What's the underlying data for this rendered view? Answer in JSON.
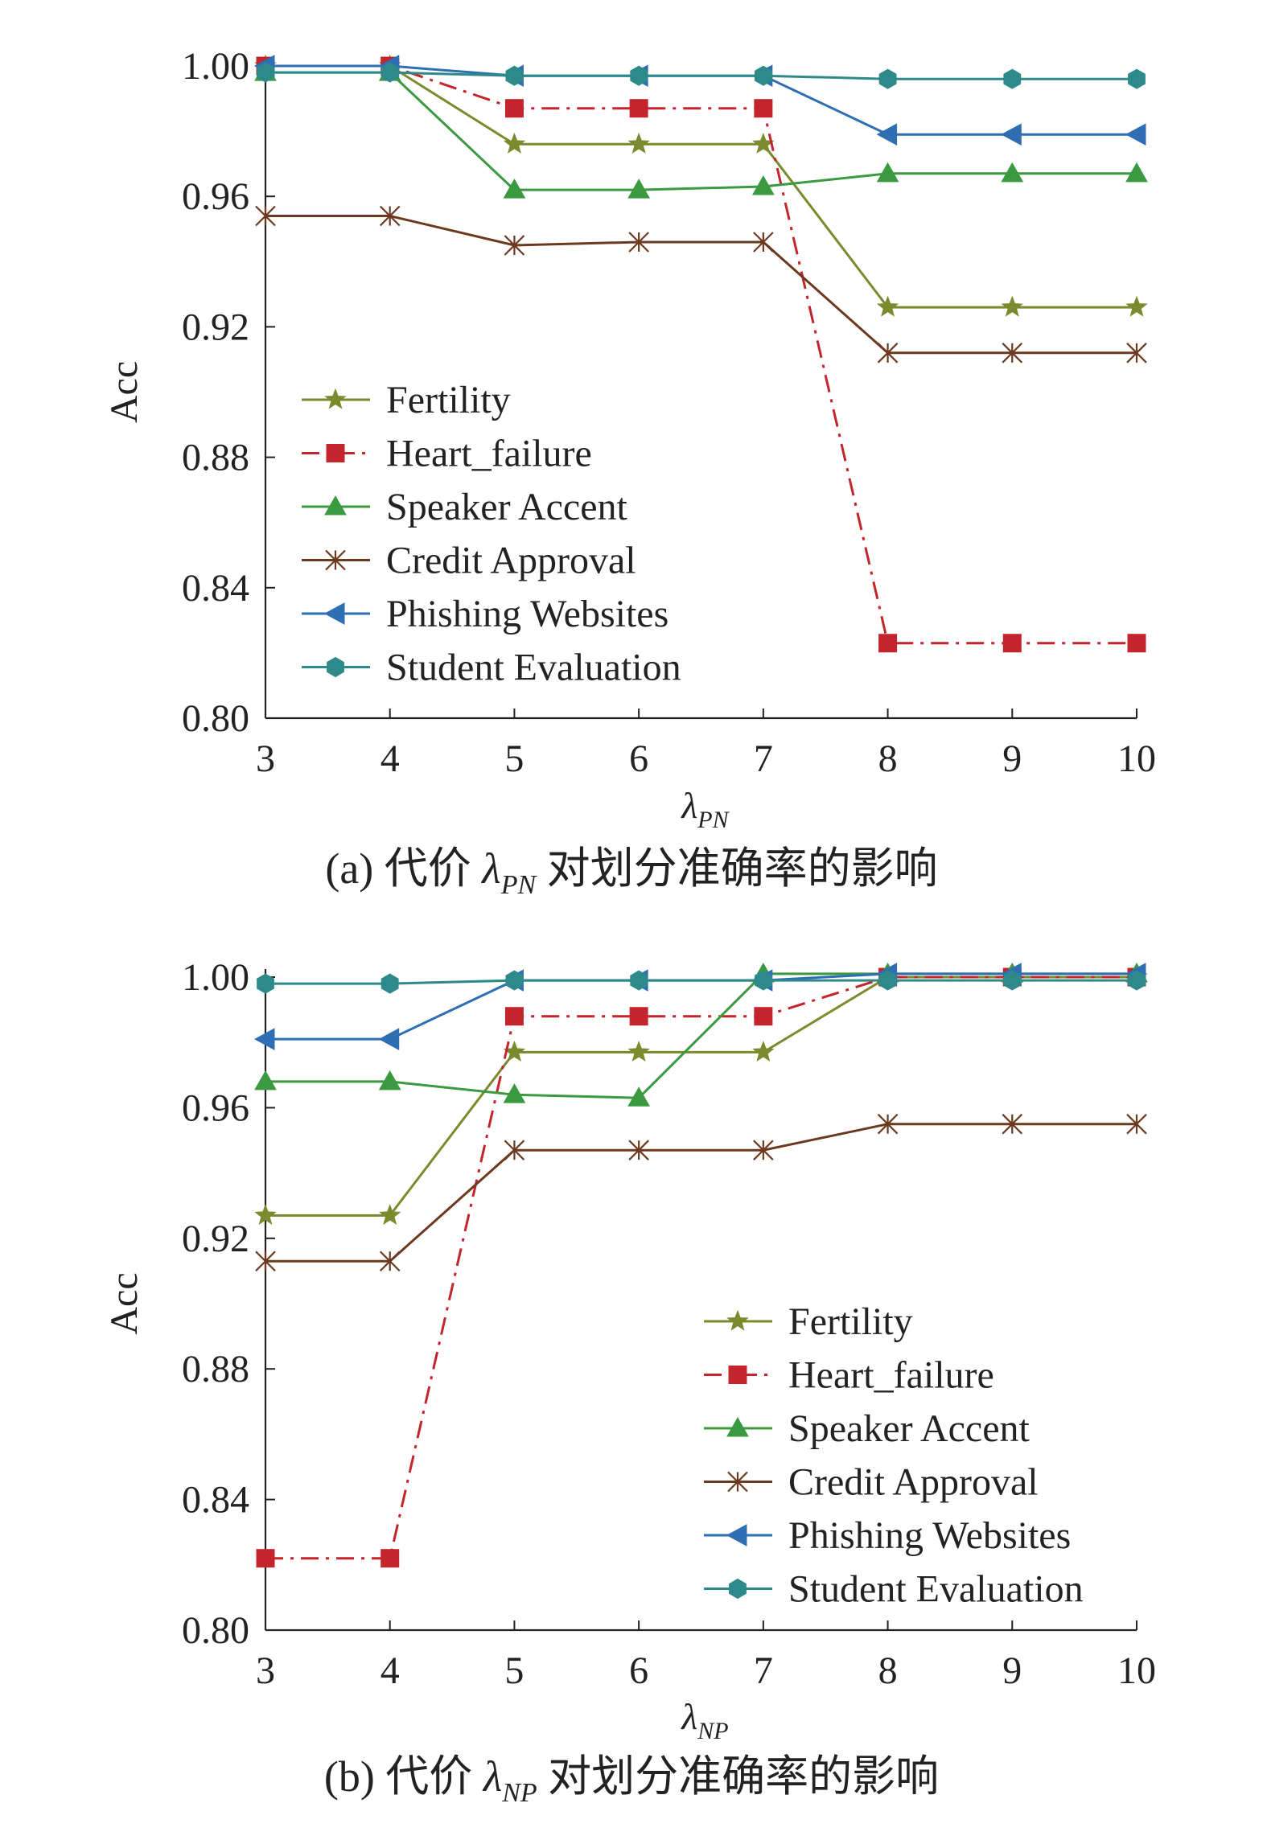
{
  "chart_data": [
    {
      "type": "line",
      "title": "",
      "caption": {
        "prefix": "(a) 代价",
        "symbol": "λ",
        "subscript": "PN",
        "suffix": "对划分准确率的影响"
      },
      "xlabel": {
        "symbol": "λ",
        "subscript": "PN"
      },
      "ylabel": "Acc",
      "x": [
        3,
        4,
        5,
        6,
        7,
        8,
        9,
        10
      ],
      "xticks": [
        "3",
        "4",
        "5",
        "6",
        "7",
        "8",
        "9",
        "10"
      ],
      "yticks": [
        "0.80",
        "0.84",
        "0.88",
        "0.92",
        "0.96",
        "1.00"
      ],
      "xlim": [
        3,
        10
      ],
      "ylim": [
        0.8,
        1.0
      ],
      "grid": false,
      "legend_position": "left-center",
      "series": [
        {
          "name": "Fertility",
          "color": "#7a8a2c",
          "marker": "star",
          "dash": "solid",
          "values": [
            1.0,
            1.0,
            0.976,
            0.976,
            0.976,
            0.926,
            0.926,
            0.926
          ]
        },
        {
          "name": "Heart_failure",
          "color": "#c4242c",
          "marker": "square",
          "dash": "dashdot",
          "values": [
            1.0,
            1.0,
            0.987,
            0.987,
            0.987,
            0.823,
            0.823,
            0.823
          ]
        },
        {
          "name": "Speaker Accent",
          "color": "#3b9a40",
          "marker": "triangle-up",
          "dash": "solid",
          "values": [
            0.998,
            0.998,
            0.962,
            0.962,
            0.963,
            0.967,
            0.967,
            0.967
          ]
        },
        {
          "name": "Credit Approval",
          "color": "#6b3a1e",
          "marker": "asterisk",
          "dash": "solid",
          "values": [
            0.954,
            0.954,
            0.945,
            0.946,
            0.946,
            0.912,
            0.912,
            0.912
          ]
        },
        {
          "name": "Phishing Websites",
          "color": "#2e6fb3",
          "marker": "triangle-left",
          "dash": "solid",
          "values": [
            1.0,
            1.0,
            0.997,
            0.997,
            0.997,
            0.979,
            0.979,
            0.979
          ]
        },
        {
          "name": "Student Evaluation",
          "color": "#2e8a8a",
          "marker": "hexagon",
          "dash": "solid",
          "values": [
            0.998,
            0.998,
            0.997,
            0.997,
            0.997,
            0.996,
            0.996,
            0.996
          ]
        }
      ]
    },
    {
      "type": "line",
      "title": "",
      "caption": {
        "prefix": "(b) 代价",
        "symbol": "λ",
        "subscript": "NP",
        "suffix": "对划分准确率的影响"
      },
      "xlabel": {
        "symbol": "λ",
        "subscript": "NP"
      },
      "ylabel": "Acc",
      "x": [
        3,
        4,
        5,
        6,
        7,
        8,
        9,
        10
      ],
      "xticks": [
        "3",
        "4",
        "5",
        "6",
        "7",
        "8",
        "9",
        "10"
      ],
      "yticks": [
        "0.80",
        "0.84",
        "0.88",
        "0.92",
        "0.96",
        "1.00"
      ],
      "xlim": [
        3,
        10
      ],
      "ylim": [
        0.8,
        1.0
      ],
      "grid": false,
      "legend_position": "bottom-right",
      "series": [
        {
          "name": "Fertility",
          "color": "#7a8a2c",
          "marker": "star",
          "dash": "solid",
          "values": [
            0.927,
            0.927,
            0.977,
            0.977,
            0.977,
            1.0,
            1.0,
            1.0
          ]
        },
        {
          "name": "Heart_failure",
          "color": "#c4242c",
          "marker": "square",
          "dash": "dashdot",
          "values": [
            0.822,
            0.822,
            0.988,
            0.988,
            0.988,
            1.0,
            1.0,
            1.0
          ]
        },
        {
          "name": "Speaker Accent",
          "color": "#3b9a40",
          "marker": "triangle-up",
          "dash": "solid",
          "values": [
            0.968,
            0.968,
            0.964,
            0.963,
            1.001,
            1.001,
            1.001,
            1.001
          ]
        },
        {
          "name": "Credit Approval",
          "color": "#6b3a1e",
          "marker": "asterisk",
          "dash": "solid",
          "values": [
            0.913,
            0.913,
            0.947,
            0.947,
            0.947,
            0.955,
            0.955,
            0.955
          ]
        },
        {
          "name": "Phishing Websites",
          "color": "#2e6fb3",
          "marker": "triangle-left",
          "dash": "solid",
          "values": [
            0.981,
            0.981,
            0.999,
            0.999,
            0.999,
            1.001,
            1.001,
            1.001
          ]
        },
        {
          "name": "Student Evaluation",
          "color": "#2e8a8a",
          "marker": "hexagon",
          "dash": "solid",
          "values": [
            0.998,
            0.998,
            0.999,
            0.999,
            0.999,
            0.999,
            0.999,
            0.999
          ]
        }
      ]
    }
  ]
}
